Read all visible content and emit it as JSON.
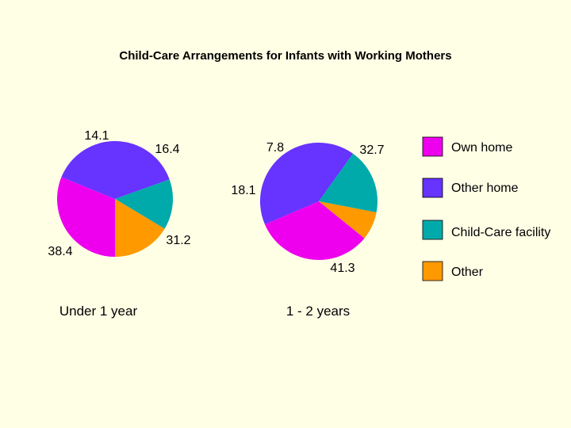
{
  "chart_data": [
    {
      "type": "pie",
      "title": "Child-Care Arrangements for Infants with Working Mothers",
      "categories": [
        "Own home",
        "Other home",
        "Child-Care facility",
        "Other"
      ],
      "colors": [
        "#EE00EE",
        "#6633FF",
        "#00AAAA",
        "#FF9900"
      ],
      "pies": [
        {
          "caption": "Under 1 year",
          "values": [
            31.2,
            38.4,
            14.1,
            16.4
          ],
          "labels": [
            "31.2",
            "38.4",
            "14.1",
            "16.4"
          ]
        },
        {
          "caption": "1 - 2 years",
          "values": [
            32.7,
            41.3,
            18.1,
            7.8
          ],
          "labels": [
            "32.7",
            "41.3",
            "18.1",
            "7.8"
          ]
        }
      ]
    }
  ]
}
